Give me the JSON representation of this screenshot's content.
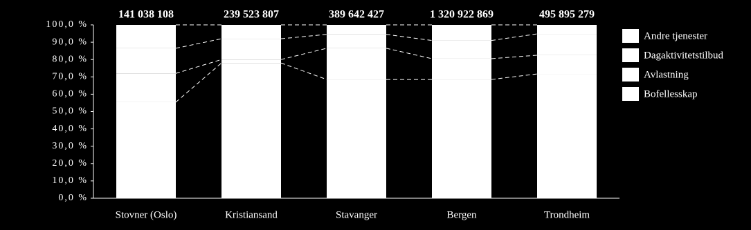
{
  "chart_data": {
    "type": "stacked-bar-100",
    "categories": [
      "Stovner (Oslo)",
      "Kristiansand",
      "Stavanger",
      "Bergen",
      "Trondheim"
    ],
    "series": [
      {
        "name": "Andre tjenester",
        "color": "#ffffff",
        "values": [
          13.5,
          8.0,
          5.5,
          9.0,
          5.2
        ]
      },
      {
        "name": "Dagaktivitetstilbud",
        "color": "#ffffff",
        "values": [
          14.5,
          12.0,
          8.0,
          10.5,
          12.3
        ]
      },
      {
        "name": "Avlastning",
        "color": "#ffffff",
        "values": [
          16.6,
          2.0,
          18.0,
          12.0,
          10.8
        ]
      },
      {
        "name": "Bofellesskap",
        "color": "#ffffff",
        "values": [
          55.4,
          78.0,
          68.5,
          68.5,
          71.7
        ]
      }
    ],
    "totals": {
      "values": [
        141038108,
        239523807,
        389642427,
        1320922869,
        495895279
      ],
      "value_labels": [
        "141 038 108",
        "239 523 807",
        "389 642 427",
        "1 320 922 869",
        "495 895 279"
      ]
    },
    "ylim": [
      0,
      100
    ],
    "yticks": [
      {
        "value": 0,
        "label": "0,0 %"
      },
      {
        "value": 10,
        "label": "10,0 %"
      },
      {
        "value": 20,
        "label": "20,0 %"
      },
      {
        "value": 30,
        "label": "30,0 %"
      },
      {
        "value": 40,
        "label": "40,0 %"
      },
      {
        "value": 50,
        "label": "50,0 %"
      },
      {
        "value": 60,
        "label": "60,0 %"
      },
      {
        "value": 70,
        "label": "70,0 %"
      },
      {
        "value": 80,
        "label": "80,0 %"
      },
      {
        "value": 90,
        "label": "90,0 %"
      },
      {
        "value": 100,
        "label": "100,0 %"
      }
    ],
    "legend": "right"
  }
}
